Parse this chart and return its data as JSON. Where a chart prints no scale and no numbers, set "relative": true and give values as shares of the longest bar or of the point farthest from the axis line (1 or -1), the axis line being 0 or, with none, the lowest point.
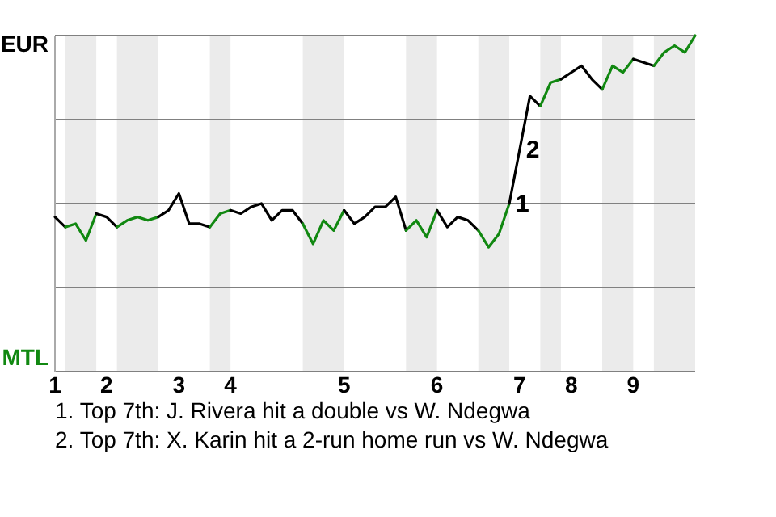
{
  "chart_data": {
    "type": "line",
    "relative": true,
    "categories": [
      "1",
      null,
      null,
      null,
      null,
      "2",
      null,
      null,
      null,
      null,
      null,
      null,
      "3",
      null,
      null,
      null,
      null,
      "4",
      null,
      null,
      null,
      null,
      null,
      null,
      null,
      null,
      null,
      null,
      "5",
      null,
      null,
      null,
      null,
      null,
      null,
      null,
      null,
      "6",
      null,
      null,
      null,
      null,
      null,
      null,
      null,
      "7",
      null,
      null,
      null,
      null,
      "8",
      null,
      null,
      null,
      null,
      null,
      "9",
      null,
      null,
      null,
      null,
      null,
      null
    ],
    "series": [
      {
        "name": "EUR",
        "color": "#000000",
        "values": [
          0.46,
          0.43,
          null,
          null,
          null,
          null,
          null,
          null,
          null,
          null,
          null,
          null,
          null,
          null,
          null,
          null,
          null,
          null,
          null,
          null,
          null,
          null,
          null,
          null,
          null,
          null,
          null,
          null,
          null,
          null,
          null,
          null,
          null,
          null,
          null,
          null,
          null,
          null,
          null,
          null,
          null,
          null,
          null,
          null,
          null,
          null,
          null,
          null,
          null,
          null,
          null,
          null,
          null,
          null,
          null,
          null,
          null,
          null,
          null,
          null,
          null,
          null,
          null
        ]
      },
      {
        "name": "MTL",
        "color": "#118811",
        "values": [
          null,
          0.43,
          0.44,
          0.39,
          0.47,
          null,
          null,
          null,
          null,
          null,
          null,
          null,
          null,
          null,
          null,
          null,
          null,
          null,
          null,
          null,
          null,
          null,
          null,
          null,
          null,
          null,
          null,
          null,
          null,
          null,
          null,
          null,
          null,
          null,
          null,
          null,
          null,
          null,
          null,
          null,
          null,
          null,
          null,
          null,
          null,
          null,
          null,
          null,
          null,
          null,
          null,
          null,
          null,
          null,
          null,
          null,
          null,
          null,
          null,
          null,
          null,
          null,
          null
        ]
      },
      {
        "color": "#000000",
        "values": [
          null,
          null,
          null,
          null,
          0.47,
          0.46,
          0.43,
          null,
          null,
          null,
          null,
          null,
          null,
          null,
          null,
          null,
          null,
          null,
          null,
          null,
          null,
          null,
          null,
          null,
          null,
          null,
          null,
          null,
          null,
          null,
          null,
          null,
          null,
          null,
          null,
          null,
          null,
          null,
          null,
          null,
          null,
          null,
          null,
          null,
          null,
          null,
          null,
          null,
          null,
          null,
          null,
          null,
          null,
          null,
          null,
          null,
          null,
          null,
          null,
          null,
          null,
          null,
          null
        ]
      },
      {
        "color": "#118811",
        "values": [
          null,
          null,
          null,
          null,
          null,
          null,
          0.43,
          0.45,
          0.46,
          0.45,
          0.46,
          null,
          null,
          null,
          null,
          null,
          null,
          null,
          null,
          null,
          null,
          null,
          null,
          null,
          null,
          null,
          null,
          null,
          null,
          null,
          null,
          null,
          null,
          null,
          null,
          null,
          null,
          null,
          null,
          null,
          null,
          null,
          null,
          null,
          null,
          null,
          null,
          null,
          null,
          null,
          null,
          null,
          null,
          null,
          null,
          null,
          null,
          null,
          null,
          null,
          null,
          null,
          null
        ]
      },
      {
        "color": "#000000",
        "values": [
          null,
          null,
          null,
          null,
          null,
          null,
          null,
          null,
          null,
          null,
          0.46,
          0.48,
          0.53,
          0.44,
          0.44,
          0.43,
          null,
          null,
          null,
          null,
          null,
          null,
          null,
          null,
          null,
          null,
          null,
          null,
          null,
          null,
          null,
          null,
          null,
          null,
          null,
          null,
          null,
          null,
          null,
          null,
          null,
          null,
          null,
          null,
          null,
          null,
          null,
          null,
          null,
          null,
          null,
          null,
          null,
          null,
          null,
          null,
          null,
          null,
          null,
          null,
          null,
          null,
          null
        ]
      },
      {
        "color": "#118811",
        "values": [
          null,
          null,
          null,
          null,
          null,
          null,
          null,
          null,
          null,
          null,
          null,
          null,
          null,
          null,
          null,
          0.43,
          0.47,
          0.48,
          null,
          null,
          null,
          null,
          null,
          null,
          null,
          null,
          null,
          null,
          null,
          null,
          null,
          null,
          null,
          null,
          null,
          null,
          null,
          null,
          null,
          null,
          null,
          null,
          null,
          null,
          null,
          null,
          null,
          null,
          null,
          null,
          null,
          null,
          null,
          null,
          null,
          null,
          null,
          null,
          null,
          null,
          null,
          null,
          null
        ]
      },
      {
        "color": "#000000",
        "values": [
          null,
          null,
          null,
          null,
          null,
          null,
          null,
          null,
          null,
          null,
          null,
          null,
          null,
          null,
          null,
          null,
          null,
          0.48,
          0.47,
          0.49,
          0.5,
          0.45,
          0.48,
          0.48,
          0.44,
          null,
          null,
          null,
          null,
          null,
          null,
          null,
          null,
          null,
          null,
          null,
          null,
          null,
          null,
          null,
          null,
          null,
          null,
          null,
          null,
          null,
          null,
          null,
          null,
          null,
          null,
          null,
          null,
          null,
          null,
          null,
          null,
          null,
          null,
          null,
          null,
          null,
          null
        ]
      },
      {
        "color": "#118811",
        "values": [
          null,
          null,
          null,
          null,
          null,
          null,
          null,
          null,
          null,
          null,
          null,
          null,
          null,
          null,
          null,
          null,
          null,
          null,
          null,
          null,
          null,
          null,
          null,
          null,
          0.44,
          0.38,
          0.45,
          0.42,
          0.48,
          null,
          null,
          null,
          null,
          null,
          null,
          null,
          null,
          null,
          null,
          null,
          null,
          null,
          null,
          null,
          null,
          null,
          null,
          null,
          null,
          null,
          null,
          null,
          null,
          null,
          null,
          null,
          null,
          null,
          null,
          null,
          null,
          null,
          null
        ]
      },
      {
        "color": "#000000",
        "values": [
          null,
          null,
          null,
          null,
          null,
          null,
          null,
          null,
          null,
          null,
          null,
          null,
          null,
          null,
          null,
          null,
          null,
          null,
          null,
          null,
          null,
          null,
          null,
          null,
          null,
          null,
          null,
          null,
          0.48,
          0.44,
          0.46,
          0.49,
          0.49,
          0.52,
          0.42,
          null,
          null,
          null,
          null,
          null,
          null,
          null,
          null,
          null,
          null,
          null,
          null,
          null,
          null,
          null,
          null,
          null,
          null,
          null,
          null,
          null,
          null,
          null,
          null,
          null,
          null,
          null,
          null
        ]
      },
      {
        "color": "#118811",
        "values": [
          null,
          null,
          null,
          null,
          null,
          null,
          null,
          null,
          null,
          null,
          null,
          null,
          null,
          null,
          null,
          null,
          null,
          null,
          null,
          null,
          null,
          null,
          null,
          null,
          null,
          null,
          null,
          null,
          null,
          null,
          null,
          null,
          null,
          null,
          0.42,
          0.45,
          0.4,
          0.48,
          null,
          null,
          null,
          null,
          null,
          null,
          null,
          null,
          null,
          null,
          null,
          null,
          null,
          null,
          null,
          null,
          null,
          null,
          null,
          null,
          null,
          null,
          null,
          null,
          null
        ]
      },
      {
        "color": "#000000",
        "values": [
          null,
          null,
          null,
          null,
          null,
          null,
          null,
          null,
          null,
          null,
          null,
          null,
          null,
          null,
          null,
          null,
          null,
          null,
          null,
          null,
          null,
          null,
          null,
          null,
          null,
          null,
          null,
          null,
          null,
          null,
          null,
          null,
          null,
          null,
          null,
          null,
          null,
          0.48,
          0.43,
          0.46,
          0.45,
          0.42,
          null,
          null,
          null,
          null,
          null,
          null,
          null,
          null,
          null,
          null,
          null,
          null,
          null,
          null,
          null,
          null,
          null,
          null,
          null,
          null,
          null
        ]
      },
      {
        "color": "#118811",
        "values": [
          null,
          null,
          null,
          null,
          null,
          null,
          null,
          null,
          null,
          null,
          null,
          null,
          null,
          null,
          null,
          null,
          null,
          null,
          null,
          null,
          null,
          null,
          null,
          null,
          null,
          null,
          null,
          null,
          null,
          null,
          null,
          null,
          null,
          null,
          null,
          null,
          null,
          null,
          null,
          null,
          null,
          0.42,
          0.37,
          0.41,
          0.5,
          null,
          null,
          null,
          null,
          null,
          null,
          null,
          null,
          null,
          null,
          null,
          null,
          null,
          null,
          null,
          null,
          null,
          null
        ]
      },
      {
        "color": "#000000",
        "values": [
          null,
          null,
          null,
          null,
          null,
          null,
          null,
          null,
          null,
          null,
          null,
          null,
          null,
          null,
          null,
          null,
          null,
          null,
          null,
          null,
          null,
          null,
          null,
          null,
          null,
          null,
          null,
          null,
          null,
          null,
          null,
          null,
          null,
          null,
          null,
          null,
          null,
          null,
          null,
          null,
          null,
          null,
          null,
          null,
          0.5,
          0.66,
          0.82,
          0.79,
          null,
          null,
          null,
          null,
          null,
          null,
          null,
          null,
          null,
          null,
          null,
          null,
          null,
          null,
          null
        ]
      },
      {
        "color": "#118811",
        "values": [
          null,
          null,
          null,
          null,
          null,
          null,
          null,
          null,
          null,
          null,
          null,
          null,
          null,
          null,
          null,
          null,
          null,
          null,
          null,
          null,
          null,
          null,
          null,
          null,
          null,
          null,
          null,
          null,
          null,
          null,
          null,
          null,
          null,
          null,
          null,
          null,
          null,
          null,
          null,
          null,
          null,
          null,
          null,
          null,
          null,
          null,
          null,
          0.79,
          0.86,
          0.87,
          null,
          null,
          null,
          null,
          null,
          null,
          null,
          null,
          null,
          null,
          null,
          null,
          null
        ]
      },
      {
        "color": "#000000",
        "values": [
          null,
          null,
          null,
          null,
          null,
          null,
          null,
          null,
          null,
          null,
          null,
          null,
          null,
          null,
          null,
          null,
          null,
          null,
          null,
          null,
          null,
          null,
          null,
          null,
          null,
          null,
          null,
          null,
          null,
          null,
          null,
          null,
          null,
          null,
          null,
          null,
          null,
          null,
          null,
          null,
          null,
          null,
          null,
          null,
          null,
          null,
          null,
          null,
          null,
          0.87,
          0.89,
          0.91,
          0.87,
          0.84,
          null,
          null,
          null,
          null,
          null,
          null,
          null,
          null,
          null
        ]
      },
      {
        "color": "#118811",
        "values": [
          null,
          null,
          null,
          null,
          null,
          null,
          null,
          null,
          null,
          null,
          null,
          null,
          null,
          null,
          null,
          null,
          null,
          null,
          null,
          null,
          null,
          null,
          null,
          null,
          null,
          null,
          null,
          null,
          null,
          null,
          null,
          null,
          null,
          null,
          null,
          null,
          null,
          null,
          null,
          null,
          null,
          null,
          null,
          null,
          null,
          null,
          null,
          null,
          null,
          null,
          null,
          null,
          null,
          0.84,
          0.91,
          0.89,
          0.93,
          null,
          null,
          null,
          null,
          null,
          null
        ]
      },
      {
        "color": "#000000",
        "values": [
          null,
          null,
          null,
          null,
          null,
          null,
          null,
          null,
          null,
          null,
          null,
          null,
          null,
          null,
          null,
          null,
          null,
          null,
          null,
          null,
          null,
          null,
          null,
          null,
          null,
          null,
          null,
          null,
          null,
          null,
          null,
          null,
          null,
          null,
          null,
          null,
          null,
          null,
          null,
          null,
          null,
          null,
          null,
          null,
          null,
          null,
          null,
          null,
          null,
          null,
          null,
          null,
          null,
          null,
          null,
          null,
          0.93,
          0.92,
          0.91,
          null,
          null,
          null,
          null
        ]
      },
      {
        "color": "#118811",
        "values": [
          null,
          null,
          null,
          null,
          null,
          null,
          null,
          null,
          null,
          null,
          null,
          null,
          null,
          null,
          null,
          null,
          null,
          null,
          null,
          null,
          null,
          null,
          null,
          null,
          null,
          null,
          null,
          null,
          null,
          null,
          null,
          null,
          null,
          null,
          null,
          null,
          null,
          null,
          null,
          null,
          null,
          null,
          null,
          null,
          null,
          null,
          null,
          null,
          null,
          null,
          null,
          null,
          null,
          null,
          null,
          null,
          null,
          null,
          0.91,
          0.95,
          0.97,
          0.95,
          1
        ]
      }
    ],
    "annotations": [
      "1",
      "2",
      "1. Top 7th: J. Rivera hit a double vs W. Ndegwa",
      "2. Top 7th: X. Karin hit a 2-run home run vs W. Ndegwa"
    ],
    "grid": true,
    "marker": "none",
    "line_style": "solid"
  }
}
